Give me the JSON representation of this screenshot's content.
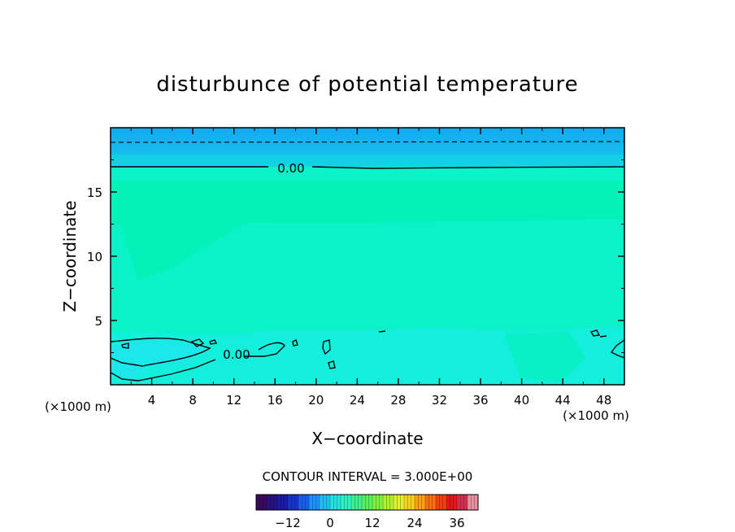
{
  "chart_data": {
    "type": "heatmap",
    "title": "disturbunce of potential temperature",
    "xlabel": "X−coordinate",
    "ylabel": "Z−coordinate",
    "x_unit": "(×1000 m)",
    "z_unit": "(×1000 m)",
    "xlim": [
      0,
      50
    ],
    "ylim": [
      0,
      20
    ],
    "x_ticks": [
      4,
      8,
      12,
      16,
      20,
      24,
      28,
      32,
      36,
      40,
      44,
      48
    ],
    "y_ticks": [
      5,
      10,
      15
    ],
    "contour_labels": [
      {
        "text": "0.00",
        "x": 17.5,
        "z": 16.8
      },
      {
        "text": "0.00",
        "x": 12.3,
        "z": 2.4
      }
    ],
    "contour_interval_label": "CONTOUR INTERVAL = 3.000E+00",
    "colorbar": {
      "min": -21,
      "max": 42,
      "ticks": [
        "−12",
        "0",
        "12",
        "24",
        "36"
      ],
      "tick_values": [
        -12,
        0,
        12,
        24,
        36
      ],
      "colors": [
        "#3a0a5c",
        "#26127e",
        "#1a1aa8",
        "#1535cc",
        "#1860ea",
        "#1e90ff",
        "#22bef0",
        "#28e0e0",
        "#30f0c0",
        "#40f090",
        "#58f060",
        "#80f040",
        "#b0f030",
        "#e0f030",
        "#f8d020",
        "#f8a018",
        "#f87010",
        "#f04010",
        "#e01818",
        "#d03050",
        "#e890a0"
      ]
    },
    "fill_colors": {
      "top_band": "#19b4f2",
      "mid": "#00f4c0",
      "low": "#12f0e0"
    }
  }
}
